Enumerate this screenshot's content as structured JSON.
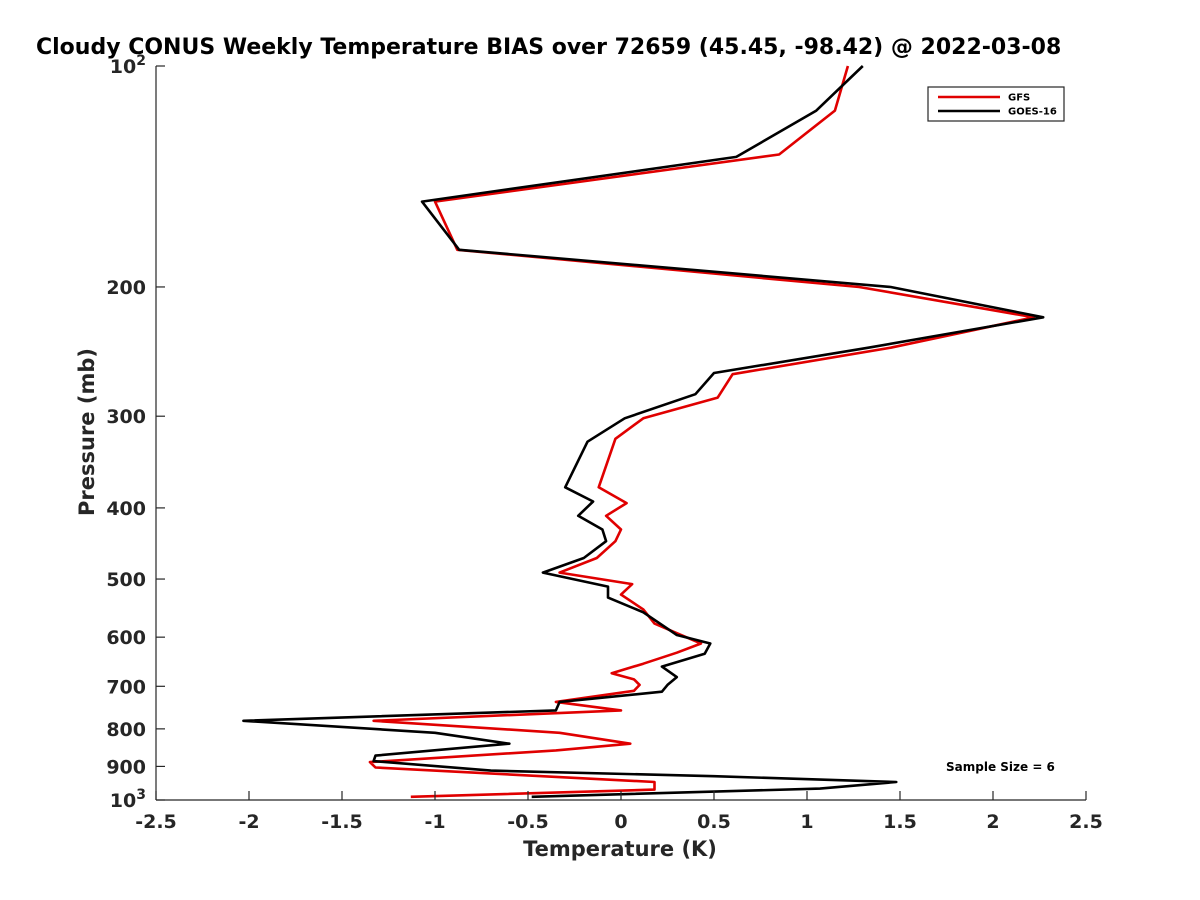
{
  "chart_data": {
    "type": "line",
    "title": "Cloudy CONUS Weekly Temperature BIAS over 72659 (45.45, -98.42) @ 2022-03-08",
    "xlabel": "Temperature (K)",
    "ylabel": "Pressure (mb)",
    "xlim": [
      -2.5,
      2.5
    ],
    "ylim": [
      1000,
      100
    ],
    "y_scale": "log",
    "y_reversed": true,
    "x_ticks": [
      "-2.5",
      "-2",
      "-1.5",
      "-1",
      "-0.5",
      "0",
      "0.5",
      "1",
      "1.5",
      "2",
      "2.5"
    ],
    "y_ticks": [
      {
        "value": 100,
        "base": "10",
        "exp": "2"
      },
      {
        "value": 200,
        "base": "200",
        "exp": ""
      },
      {
        "value": 300,
        "base": "300",
        "exp": ""
      },
      {
        "value": 400,
        "base": "400",
        "exp": ""
      },
      {
        "value": 500,
        "base": "500",
        "exp": ""
      },
      {
        "value": 600,
        "base": "600",
        "exp": ""
      },
      {
        "value": 700,
        "base": "700",
        "exp": ""
      },
      {
        "value": 800,
        "base": "800",
        "exp": ""
      },
      {
        "value": 900,
        "base": "900",
        "exp": ""
      },
      {
        "value": 1000,
        "base": "10",
        "exp": "3"
      }
    ],
    "grid": false,
    "legend_position": "top-right",
    "series": [
      {
        "name": "GFS",
        "color": "#e00000",
        "points": [
          [
            1.22,
            100
          ],
          [
            1.15,
            115
          ],
          [
            0.85,
            132
          ],
          [
            -1.0,
            153
          ],
          [
            -0.88,
            178
          ],
          [
            1.28,
            200
          ],
          [
            2.22,
            220
          ],
          [
            1.45,
            242
          ],
          [
            0.6,
            263
          ],
          [
            0.52,
            283
          ],
          [
            0.12,
            302
          ],
          [
            -0.03,
            322
          ],
          [
            -0.12,
            375
          ],
          [
            0.03,
            394
          ],
          [
            -0.08,
            410
          ],
          [
            0.0,
            428
          ],
          [
            -0.03,
            444
          ],
          [
            -0.13,
            468
          ],
          [
            -0.33,
            490
          ],
          [
            0.06,
            508
          ],
          [
            0.0,
            525
          ],
          [
            0.12,
            550
          ],
          [
            0.18,
            575
          ],
          [
            0.43,
            612
          ],
          [
            0.3,
            630
          ],
          [
            0.12,
            652
          ],
          [
            -0.05,
            672
          ],
          [
            0.07,
            685
          ],
          [
            0.1,
            697
          ],
          [
            0.07,
            710
          ],
          [
            -0.35,
            735
          ],
          [
            0.0,
            755
          ],
          [
            -1.33,
            780
          ],
          [
            -0.33,
            810
          ],
          [
            0.05,
            838
          ],
          [
            -0.35,
            856
          ],
          [
            -1.35,
            888
          ],
          [
            -1.32,
            903
          ],
          [
            0.18,
            945
          ],
          [
            0.18,
            968
          ],
          [
            -1.13,
            990
          ]
        ]
      },
      {
        "name": "GOES-16",
        "color": "#000000",
        "points": [
          [
            1.3,
            100
          ],
          [
            1.05,
            115
          ],
          [
            0.62,
            133
          ],
          [
            -1.07,
            153
          ],
          [
            -0.87,
            178
          ],
          [
            1.45,
            200
          ],
          [
            2.27,
            220
          ],
          [
            1.33,
            242
          ],
          [
            0.5,
            262
          ],
          [
            0.4,
            280
          ],
          [
            0.02,
            302
          ],
          [
            -0.18,
            325
          ],
          [
            -0.3,
            375
          ],
          [
            -0.15,
            392
          ],
          [
            -0.23,
            410
          ],
          [
            -0.1,
            428
          ],
          [
            -0.08,
            444
          ],
          [
            -0.2,
            468
          ],
          [
            -0.42,
            490
          ],
          [
            -0.07,
            512
          ],
          [
            -0.07,
            530
          ],
          [
            0.12,
            555
          ],
          [
            0.3,
            596
          ],
          [
            0.48,
            612
          ],
          [
            0.45,
            632
          ],
          [
            0.22,
            658
          ],
          [
            0.3,
            680
          ],
          [
            0.25,
            697
          ],
          [
            0.22,
            712
          ],
          [
            -0.33,
            735
          ],
          [
            -0.35,
            755
          ],
          [
            -2.03,
            780
          ],
          [
            -1.0,
            810
          ],
          [
            -0.6,
            838
          ],
          [
            -1.32,
            870
          ],
          [
            -1.33,
            885
          ],
          [
            -0.7,
            912
          ],
          [
            0.5,
            928
          ],
          [
            1.48,
            945
          ],
          [
            1.07,
            965
          ],
          [
            -0.48,
            990
          ]
        ]
      }
    ],
    "annotation": "Sample Size = 6"
  }
}
